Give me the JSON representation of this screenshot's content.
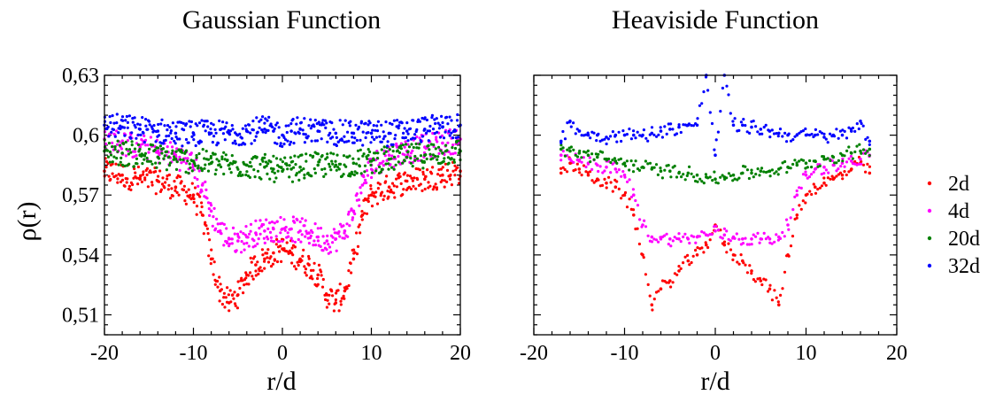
{
  "colors": {
    "2d": "#ff0000",
    "4d": "#ff00ff",
    "20d": "#008000",
    "32d": "#0000ff"
  },
  "legend": [
    "2d",
    "4d",
    "20d",
    "32d"
  ],
  "chart_data": [
    {
      "type": "scatter",
      "title": "Gaussian Function",
      "xlabel": "r/d",
      "ylabel": "ρ(r)",
      "xlim": [
        -20,
        20
      ],
      "ylim": [
        0.5,
        0.63
      ],
      "xticks": [
        -20,
        -10,
        0,
        10,
        20
      ],
      "xtick_labels": [
        "-20",
        "-10",
        "0",
        "10",
        "20"
      ],
      "yticks": [
        0.51,
        0.54,
        0.57,
        0.6,
        0.63
      ],
      "ytick_labels": [
        "0,51",
        "0,54",
        "0,57",
        "0,6",
        "0,63"
      ],
      "grid": false,
      "series": [
        {
          "name": "2d",
          "x": [
            -20,
            -18,
            -16,
            -14,
            -12,
            -10,
            -9,
            -8,
            -7,
            -6,
            -5,
            -4,
            -3,
            -2,
            -1,
            0,
            1,
            2,
            3,
            4,
            5,
            6,
            7,
            8,
            9,
            10,
            12,
            14,
            16,
            18,
            20
          ],
          "y": [
            0.582,
            0.58,
            0.578,
            0.577,
            0.574,
            0.57,
            0.56,
            0.538,
            0.522,
            0.516,
            0.52,
            0.53,
            0.535,
            0.538,
            0.541,
            0.543,
            0.541,
            0.538,
            0.535,
            0.53,
            0.52,
            0.516,
            0.522,
            0.538,
            0.56,
            0.57,
            0.574,
            0.577,
            0.578,
            0.58,
            0.582
          ]
        },
        {
          "name": "4d",
          "x": [
            -20,
            -18,
            -16,
            -14,
            -12,
            -10,
            -9,
            -8,
            -7,
            -6,
            -5,
            -4,
            -3,
            -2,
            -1,
            0,
            1,
            2,
            3,
            4,
            5,
            6,
            7,
            8,
            9,
            10,
            12,
            14,
            16,
            18,
            20
          ],
          "y": [
            0.598,
            0.596,
            0.594,
            0.592,
            0.59,
            0.585,
            0.575,
            0.562,
            0.552,
            0.548,
            0.547,
            0.549,
            0.551,
            0.552,
            0.553,
            0.553,
            0.553,
            0.552,
            0.551,
            0.549,
            0.547,
            0.548,
            0.552,
            0.562,
            0.575,
            0.585,
            0.59,
            0.592,
            0.594,
            0.596,
            0.598
          ]
        },
        {
          "name": "20d",
          "x": [
            -20,
            -18,
            -16,
            -14,
            -12,
            -10,
            -8,
            -6,
            -4,
            -2,
            -1,
            0,
            1,
            2,
            4,
            6,
            8,
            10,
            12,
            14,
            16,
            18,
            20
          ],
          "y": [
            0.592,
            0.591,
            0.59,
            0.589,
            0.588,
            0.587,
            0.586,
            0.585,
            0.585,
            0.584,
            0.583,
            0.582,
            0.583,
            0.584,
            0.585,
            0.585,
            0.586,
            0.587,
            0.588,
            0.589,
            0.59,
            0.591,
            0.592
          ]
        },
        {
          "name": "32d",
          "x": [
            -20,
            -18,
            -16,
            -14,
            -12,
            -10,
            -8,
            -6,
            -4,
            -2,
            -1,
            0,
            1,
            2,
            4,
            6,
            8,
            10,
            12,
            14,
            16,
            18,
            20
          ],
          "y": [
            0.605,
            0.604,
            0.603,
            0.602,
            0.601,
            0.601,
            0.601,
            0.601,
            0.602,
            0.603,
            0.602,
            0.6,
            0.602,
            0.603,
            0.602,
            0.601,
            0.601,
            0.601,
            0.601,
            0.602,
            0.603,
            0.604,
            0.605
          ]
        }
      ]
    },
    {
      "type": "scatter",
      "title": "Heaviside Function",
      "xlabel": "r/d",
      "ylabel": "",
      "xlim": [
        -20,
        20
      ],
      "ylim": [
        0.5,
        0.63
      ],
      "xticks": [
        -20,
        -10,
        0,
        10,
        20
      ],
      "xtick_labels": [
        "-20",
        "-10",
        "0",
        "10",
        "20"
      ],
      "yticks": [
        0.51,
        0.54,
        0.57,
        0.6,
        0.63
      ],
      "ytick_labels": [],
      "grid": false,
      "series": [
        {
          "name": "2d",
          "x": [
            -17,
            -16,
            -15,
            -14,
            -13,
            -12,
            -11,
            -10,
            -9,
            -8,
            -7,
            -6,
            -5,
            -4,
            -3,
            -2,
            -1,
            0,
            1,
            2,
            3,
            4,
            5,
            6,
            7,
            8,
            9,
            10,
            11,
            12,
            13,
            14,
            15,
            16,
            17
          ],
          "y": [
            0.581,
            0.586,
            0.583,
            0.58,
            0.578,
            0.576,
            0.574,
            0.57,
            0.56,
            0.54,
            0.515,
            0.523,
            0.527,
            0.532,
            0.537,
            0.54,
            0.545,
            0.555,
            0.545,
            0.54,
            0.537,
            0.532,
            0.527,
            0.523,
            0.515,
            0.54,
            0.56,
            0.57,
            0.574,
            0.576,
            0.578,
            0.58,
            0.583,
            0.586,
            0.581
          ]
        },
        {
          "name": "4d",
          "x": [
            -17,
            -16,
            -15,
            -14,
            -13,
            -12,
            -11,
            -10,
            -9,
            -8,
            -7,
            -6,
            -5,
            -4,
            -3,
            -2,
            -1,
            0,
            1,
            2,
            3,
            4,
            5,
            6,
            7,
            8,
            9,
            10,
            11,
            12,
            13,
            14,
            15,
            16,
            17
          ],
          "y": [
            0.59,
            0.588,
            0.587,
            0.586,
            0.585,
            0.584,
            0.583,
            0.58,
            0.57,
            0.555,
            0.549,
            0.548,
            0.548,
            0.548,
            0.548,
            0.549,
            0.55,
            0.552,
            0.55,
            0.549,
            0.548,
            0.548,
            0.548,
            0.548,
            0.549,
            0.555,
            0.57,
            0.58,
            0.583,
            0.584,
            0.585,
            0.586,
            0.587,
            0.588,
            0.59
          ]
        },
        {
          "name": "20d",
          "x": [
            -17,
            -16,
            -15,
            -14,
            -13,
            -12,
            -11,
            -10,
            -9,
            -8,
            -7,
            -6,
            -5,
            -4,
            -3,
            -2,
            -1,
            0,
            1,
            2,
            3,
            4,
            5,
            6,
            7,
            8,
            9,
            10,
            11,
            12,
            13,
            14,
            15,
            16,
            17
          ],
          "y": [
            0.593,
            0.592,
            0.591,
            0.59,
            0.589,
            0.588,
            0.587,
            0.586,
            0.585,
            0.584,
            0.583,
            0.582,
            0.582,
            0.581,
            0.581,
            0.58,
            0.579,
            0.578,
            0.579,
            0.58,
            0.581,
            0.581,
            0.582,
            0.582,
            0.583,
            0.584,
            0.585,
            0.586,
            0.587,
            0.588,
            0.589,
            0.59,
            0.591,
            0.592,
            0.593
          ]
        },
        {
          "name": "32d",
          "x": [
            -17,
            -16,
            -15,
            -14,
            -13,
            -12,
            -11,
            -10,
            -9,
            -8,
            -7,
            -6,
            -5,
            -4,
            -3,
            -2,
            -1,
            0,
            1,
            2,
            3,
            4,
            5,
            6,
            7,
            8,
            9,
            10,
            11,
            12,
            13,
            14,
            15,
            16,
            17
          ],
          "y": [
            0.597,
            0.607,
            0.602,
            0.6,
            0.6,
            0.599,
            0.6,
            0.6,
            0.6,
            0.6,
            0.601,
            0.602,
            0.603,
            0.604,
            0.605,
            0.605,
            0.63,
            0.59,
            0.63,
            0.605,
            0.605,
            0.604,
            0.603,
            0.602,
            0.601,
            0.6,
            0.6,
            0.6,
            0.6,
            0.599,
            0.6,
            0.6,
            0.602,
            0.607,
            0.597
          ]
        }
      ]
    }
  ]
}
